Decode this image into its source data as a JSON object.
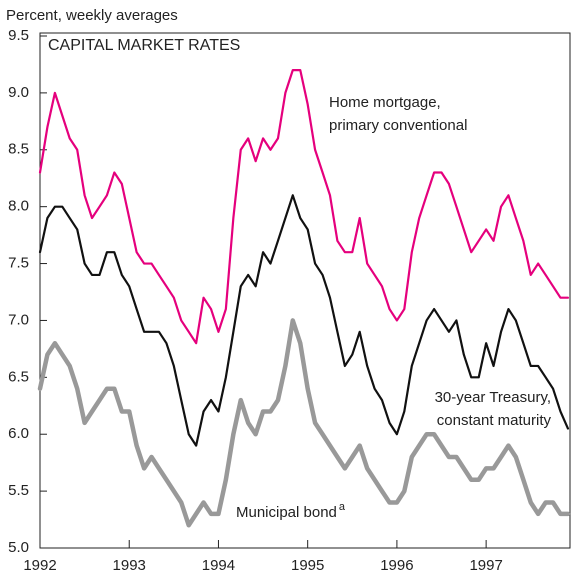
{
  "chart_data": {
    "type": "line",
    "y_axis_label": "Percent, weekly averages",
    "title": "CAPITAL MARKET RATES",
    "xlim": [
      1992,
      1997.94
    ],
    "xticks": [
      1992,
      1993,
      1994,
      1995,
      1996,
      1997
    ],
    "ylim": [
      5.0,
      9.5
    ],
    "yticks": [
      {
        "value": 5,
        "label": "5.0"
      },
      5.5,
      {
        "value": 6,
        "label": "6.0"
      },
      6.5,
      {
        "value": 7,
        "label": "7.0"
      },
      7.5,
      {
        "value": 8,
        "label": "8.0"
      },
      8.5,
      {
        "value": 9,
        "label": "9.0"
      },
      9.5
    ],
    "grid": false,
    "x": [
      1992.0,
      1992.083,
      1992.167,
      1992.25,
      1992.333,
      1992.417,
      1992.5,
      1992.583,
      1992.667,
      1992.75,
      1992.833,
      1992.917,
      1993.0,
      1993.083,
      1993.167,
      1993.25,
      1993.333,
      1993.417,
      1993.5,
      1993.583,
      1993.667,
      1993.75,
      1993.833,
      1993.917,
      1994.0,
      1994.083,
      1994.167,
      1994.25,
      1994.333,
      1994.417,
      1994.5,
      1994.583,
      1994.667,
      1994.75,
      1994.833,
      1994.917,
      1995.0,
      1995.083,
      1995.167,
      1995.25,
      1995.333,
      1995.417,
      1995.5,
      1995.583,
      1995.667,
      1995.75,
      1995.833,
      1995.917,
      1996.0,
      1996.083,
      1996.167,
      1996.25,
      1996.333,
      1996.417,
      1996.5,
      1996.583,
      1996.667,
      1996.75,
      1996.833,
      1996.917,
      1997.0,
      1997.083,
      1997.167,
      1997.25,
      1997.333,
      1997.417,
      1997.5,
      1997.583,
      1997.667,
      1997.75,
      1997.833,
      1997.917
    ],
    "series": [
      {
        "name": [
          "Home mortgage,",
          "primary conventional"
        ],
        "color": "#e5007d",
        "width": 2.2,
        "values": [
          8.3,
          8.7,
          9.0,
          8.8,
          8.6,
          8.5,
          8.1,
          7.9,
          8.0,
          8.1,
          8.3,
          8.2,
          7.9,
          7.6,
          7.5,
          7.5,
          7.4,
          7.3,
          7.2,
          7.0,
          6.9,
          6.8,
          7.2,
          7.1,
          6.9,
          7.1,
          7.9,
          8.5,
          8.6,
          8.4,
          8.6,
          8.5,
          8.6,
          9.0,
          9.2,
          9.2,
          8.9,
          8.5,
          8.3,
          8.1,
          7.7,
          7.6,
          7.6,
          7.9,
          7.5,
          7.4,
          7.3,
          7.1,
          7.0,
          7.1,
          7.6,
          7.9,
          8.1,
          8.3,
          8.3,
          8.2,
          8.0,
          7.8,
          7.6,
          7.7,
          7.8,
          7.7,
          8.0,
          8.1,
          7.9,
          7.7,
          7.4,
          7.5,
          7.4,
          7.3,
          7.2,
          7.2
        ]
      },
      {
        "name": [
          "30-year Treasury,",
          "constant maturity"
        ],
        "color": "#111111",
        "width": 2.2,
        "values": [
          7.6,
          7.9,
          8.0,
          8.0,
          7.9,
          7.8,
          7.5,
          7.4,
          7.4,
          7.6,
          7.6,
          7.4,
          7.3,
          7.1,
          6.9,
          6.9,
          6.9,
          6.8,
          6.6,
          6.3,
          6.0,
          5.9,
          6.2,
          6.3,
          6.2,
          6.5,
          6.9,
          7.3,
          7.4,
          7.3,
          7.6,
          7.5,
          7.7,
          7.9,
          8.1,
          7.9,
          7.8,
          7.5,
          7.4,
          7.2,
          6.9,
          6.6,
          6.7,
          6.9,
          6.6,
          6.4,
          6.3,
          6.1,
          6.0,
          6.2,
          6.6,
          6.8,
          7.0,
          7.1,
          7.0,
          6.9,
          7.0,
          6.7,
          6.5,
          6.5,
          6.8,
          6.6,
          6.9,
          7.1,
          7.0,
          6.8,
          6.6,
          6.6,
          6.5,
          6.4,
          6.2,
          6.05
        ]
      },
      {
        "name": [
          "Municipal bond"
        ],
        "footnote": "a",
        "color": "#999999",
        "width": 4.5,
        "values": [
          6.4,
          6.7,
          6.8,
          6.7,
          6.6,
          6.4,
          6.1,
          6.2,
          6.3,
          6.4,
          6.4,
          6.2,
          6.2,
          5.9,
          5.7,
          5.8,
          5.7,
          5.6,
          5.5,
          5.4,
          5.2,
          5.3,
          5.4,
          5.3,
          5.3,
          5.6,
          6.0,
          6.3,
          6.1,
          6.0,
          6.2,
          6.2,
          6.3,
          6.6,
          7.0,
          6.8,
          6.4,
          6.1,
          6.0,
          5.9,
          5.8,
          5.7,
          5.8,
          5.9,
          5.7,
          5.6,
          5.5,
          5.4,
          5.4,
          5.5,
          5.8,
          5.9,
          6.0,
          6.0,
          5.9,
          5.8,
          5.8,
          5.7,
          5.6,
          5.6,
          5.7,
          5.7,
          5.8,
          5.9,
          5.8,
          5.6,
          5.4,
          5.3,
          5.4,
          5.4,
          5.3,
          5.3
        ]
      }
    ]
  }
}
